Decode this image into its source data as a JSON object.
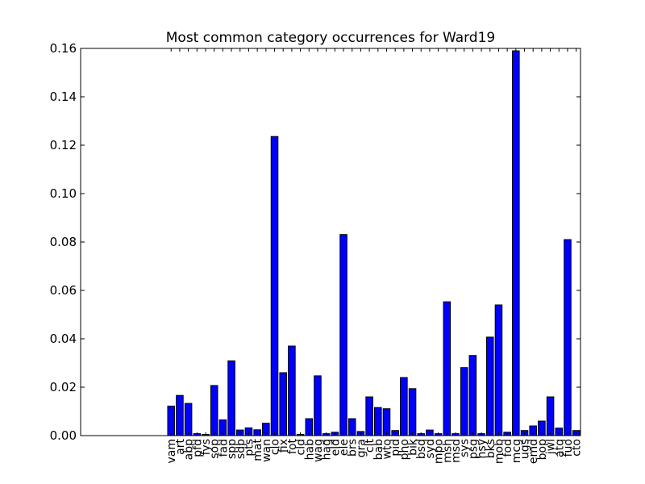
{
  "chart_data": {
    "type": "bar",
    "title": "Most common category occurrences for Ward19",
    "xlabel": "",
    "ylabel": "",
    "ylim": [
      0,
      0.16
    ],
    "yticks": [
      "0.00",
      "0.02",
      "0.04",
      "0.06",
      "0.08",
      "0.10",
      "0.12",
      "0.14",
      "0.16"
    ],
    "bar_color": "#0000ff",
    "edge_color": "#000000",
    "grid": false,
    "categories": [
      "vam",
      "art",
      "abp",
      "pfd",
      "fys",
      "sop",
      "fad",
      "spp",
      "sdp",
      "pts",
      "mat",
      "wan",
      "clo",
      "fix",
      "fot",
      "cld",
      "hab",
      "wag",
      "hag",
      "eld",
      "ele",
      "brs",
      "gra",
      "clt",
      "bab",
      "wto",
      "pid",
      "pho",
      "bik",
      "bsd",
      "syd",
      "mpo",
      "msh",
      "msd",
      "sys",
      "psg",
      "hsy",
      "bks",
      "mob",
      "fod",
      "mcg",
      "ugs",
      "emd",
      "bop",
      "jwl",
      "atq",
      "fuo",
      "cto"
    ],
    "values": [
      0.0122,
      0.0166,
      0.0133,
      0.0008,
      0.0005,
      0.0207,
      0.0065,
      0.0309,
      0.0023,
      0.0032,
      0.0024,
      0.0051,
      0.1236,
      0.026,
      0.037,
      0.0005,
      0.007,
      0.0247,
      0.0008,
      0.0014,
      0.0831,
      0.007,
      0.0017,
      0.016,
      0.0116,
      0.0111,
      0.0021,
      0.024,
      0.0194,
      0.0008,
      0.0023,
      0.0008,
      0.0553,
      0.0008,
      0.0281,
      0.0331,
      0.0008,
      0.0407,
      0.054,
      0.0014,
      0.159,
      0.0021,
      0.004,
      0.006,
      0.016,
      0.0031,
      0.081,
      0.0021
    ]
  }
}
